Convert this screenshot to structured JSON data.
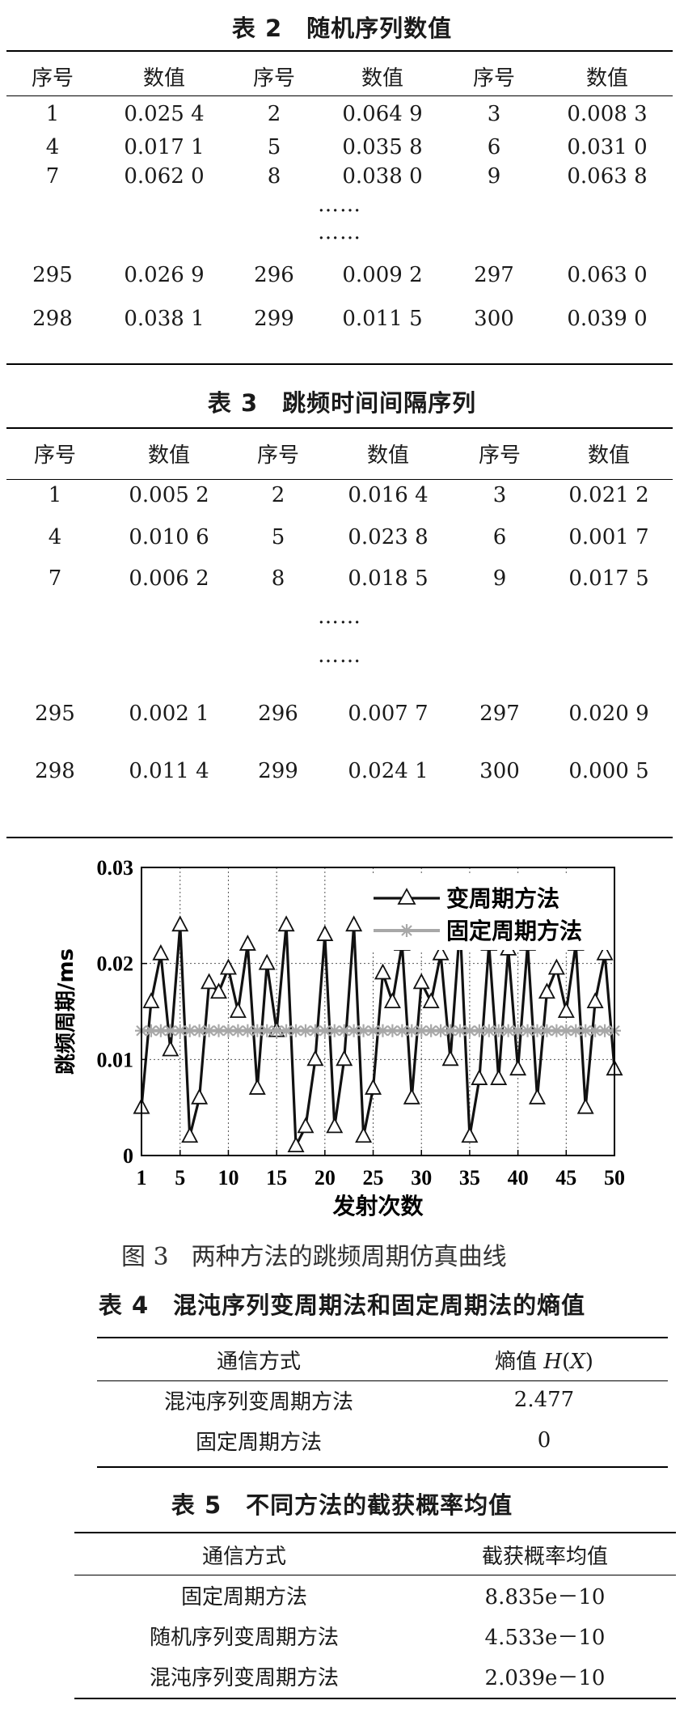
{
  "table2": {
    "num": "表 2",
    "title": "随机序列数值",
    "headers": [
      "序号",
      "数值",
      "序号",
      "数值",
      "序号",
      "数值"
    ],
    "rows": [
      [
        "1",
        "0.025 4",
        "2",
        "0.064 9",
        "3",
        "0.008 3"
      ],
      [
        "4",
        "0.017 1",
        "5",
        "0.035 8",
        "6",
        "0.031 0"
      ],
      [
        "7",
        "0.062 0",
        "8",
        "0.038 0",
        "9",
        "0.063 8"
      ],
      [
        "……"
      ],
      [
        "……"
      ],
      [
        "295",
        "0.026 9",
        "296",
        "0.009 2",
        "297",
        "0.063 0"
      ],
      [
        "298",
        "0.038 1",
        "299",
        "0.011 5",
        "300",
        "0.039 0"
      ]
    ]
  },
  "table3": {
    "num": "表 3",
    "title": "跳频时间间隔序列",
    "headers": [
      "序号",
      "数值",
      "序号",
      "数值",
      "序号",
      "数值"
    ],
    "rows": [
      [
        "1",
        "0.005 2",
        "2",
        "0.016 4",
        "3",
        "0.021 2"
      ],
      [
        "4",
        "0.010 6",
        "5",
        "0.023 8",
        "6",
        "0.001 7"
      ],
      [
        "7",
        "0.006 2",
        "8",
        "0.018 5",
        "9",
        "0.017 5"
      ],
      [
        "……"
      ],
      [
        "……"
      ],
      [
        "295",
        "0.002 1",
        "296",
        "0.007 7",
        "297",
        "0.020 9"
      ],
      [
        "298",
        "0.011 4",
        "299",
        "0.024 1",
        "300",
        "0.000 5"
      ]
    ]
  },
  "figure3": {
    "num": "图 3",
    "caption": "两种方法的跳频周期仿真曲线"
  },
  "chart_data": {
    "type": "line",
    "title": "",
    "xlabel": "发射次数",
    "ylabel": "跳频周期/ms",
    "xlim": [
      1,
      50
    ],
    "ylim": [
      0,
      0.03
    ],
    "xticks": [
      "1",
      "5",
      "10",
      "15",
      "20",
      "25",
      "30",
      "35",
      "40",
      "45",
      "50"
    ],
    "yticks": [
      "0",
      "0.01",
      "0.02",
      "0.03"
    ],
    "grid": true,
    "legend_position": "top-right",
    "series": [
      {
        "name": "变周期方法",
        "color": "#111111",
        "marker": "triangle",
        "x": [
          1,
          2,
          3,
          4,
          5,
          6,
          7,
          8,
          9,
          10,
          11,
          12,
          13,
          14,
          15,
          16,
          17,
          18,
          19,
          20,
          21,
          22,
          23,
          24,
          25,
          26,
          27,
          28,
          29,
          30,
          31,
          32,
          33,
          34,
          35,
          36,
          37,
          38,
          39,
          40,
          41,
          42,
          43,
          44,
          45,
          46,
          47,
          48,
          49,
          50
        ],
        "values": [
          0.005,
          0.016,
          0.021,
          0.011,
          0.024,
          0.002,
          0.006,
          0.018,
          0.017,
          0.0195,
          0.015,
          0.022,
          0.007,
          0.02,
          0.013,
          0.024,
          0.001,
          0.003,
          0.01,
          0.023,
          0.003,
          0.01,
          0.024,
          0.002,
          0.007,
          0.019,
          0.016,
          0.022,
          0.006,
          0.018,
          0.016,
          0.021,
          0.01,
          0.024,
          0.002,
          0.008,
          0.022,
          0.008,
          0.0215,
          0.009,
          0.022,
          0.006,
          0.017,
          0.0195,
          0.015,
          0.022,
          0.005,
          0.016,
          0.021,
          0.009
        ]
      },
      {
        "name": "固定周期方法",
        "color": "#a8a8a8",
        "marker": "asterisk",
        "x": [
          1,
          2,
          3,
          4,
          5,
          6,
          7,
          8,
          9,
          10,
          11,
          12,
          13,
          14,
          15,
          16,
          17,
          18,
          19,
          20,
          21,
          22,
          23,
          24,
          25,
          26,
          27,
          28,
          29,
          30,
          31,
          32,
          33,
          34,
          35,
          36,
          37,
          38,
          39,
          40,
          41,
          42,
          43,
          44,
          45,
          46,
          47,
          48,
          49,
          50
        ],
        "values": [
          0.013,
          0.013,
          0.013,
          0.013,
          0.013,
          0.013,
          0.013,
          0.013,
          0.013,
          0.013,
          0.013,
          0.013,
          0.013,
          0.013,
          0.013,
          0.013,
          0.013,
          0.013,
          0.013,
          0.013,
          0.013,
          0.013,
          0.013,
          0.013,
          0.013,
          0.013,
          0.013,
          0.013,
          0.013,
          0.013,
          0.013,
          0.013,
          0.013,
          0.013,
          0.013,
          0.013,
          0.013,
          0.013,
          0.013,
          0.013,
          0.013,
          0.013,
          0.013,
          0.013,
          0.013,
          0.013,
          0.013,
          0.013,
          0.013,
          0.013
        ]
      }
    ]
  },
  "table4": {
    "num": "表 4",
    "title": "混沌序列变周期法和固定周期法的熵值",
    "headers": [
      "通信方式",
      "熵值 H(X)"
    ],
    "rows": [
      [
        "混沌序列变周期方法",
        "2.477"
      ],
      [
        "固定周期方法",
        "0"
      ]
    ]
  },
  "table5": {
    "num": "表 5",
    "title": "不同方法的截获概率均值",
    "headers": [
      "通信方式",
      "截获概率均值"
    ],
    "rows": [
      [
        "固定周期方法",
        "8.835e－10"
      ],
      [
        "随机序列变周期方法",
        "4.533e－10"
      ],
      [
        "混沌序列变周期方法",
        "2.039e－10"
      ]
    ]
  }
}
